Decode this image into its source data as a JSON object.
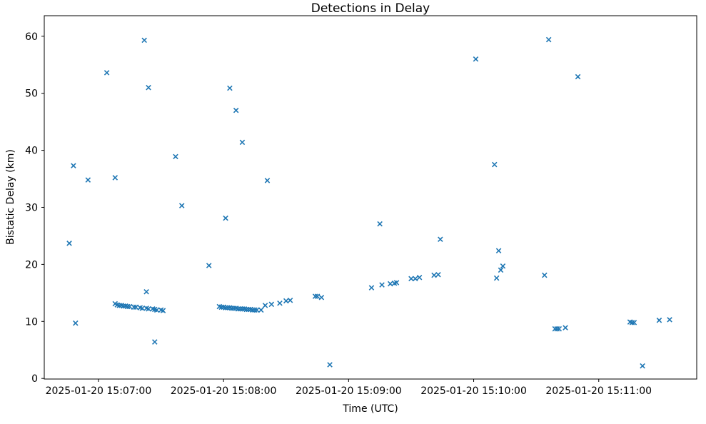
{
  "chart_data": {
    "type": "scatter",
    "title": "Detections in Delay",
    "xlabel": "Time (UTC)",
    "ylabel": "Bistatic Delay (km)",
    "legend": null,
    "grid": false,
    "marker": "x",
    "marker_color": "#1f77b4",
    "background_color": "#ffffff",
    "xlim": [
      "2025-01-20 15:06:34",
      "2025-01-20 15:11:47"
    ],
    "ylim": [
      -0.1,
      63.6
    ],
    "x_ticks": [
      "2025-01-20 15:07:00",
      "2025-01-20 15:08:00",
      "2025-01-20 15:09:00",
      "2025-01-20 15:10:00",
      "2025-01-20 15:11:00"
    ],
    "y_ticks": [
      0,
      10,
      20,
      30,
      40,
      50,
      60
    ],
    "points": [
      {
        "time": "2025-01-20 15:06:46",
        "delay_km": 23.7
      },
      {
        "time": "2025-01-20 15:06:48",
        "delay_km": 37.3
      },
      {
        "time": "2025-01-20 15:06:49",
        "delay_km": 9.7
      },
      {
        "time": "2025-01-20 15:06:55",
        "delay_km": 34.8
      },
      {
        "time": "2025-01-20 15:07:04",
        "delay_km": 53.6
      },
      {
        "time": "2025-01-20 15:07:08",
        "delay_km": 35.2
      },
      {
        "time": "2025-01-20 15:07:08",
        "delay_km": 13.1
      },
      {
        "time": "2025-01-20 15:07:09",
        "delay_km": 12.9
      },
      {
        "time": "2025-01-20 15:07:10",
        "delay_km": 12.8
      },
      {
        "time": "2025-01-20 15:07:11",
        "delay_km": 12.8
      },
      {
        "time": "2025-01-20 15:07:12",
        "delay_km": 12.7
      },
      {
        "time": "2025-01-20 15:07:13",
        "delay_km": 12.7
      },
      {
        "time": "2025-01-20 15:07:14",
        "delay_km": 12.6
      },
      {
        "time": "2025-01-20 15:07:15",
        "delay_km": 12.6
      },
      {
        "time": "2025-01-20 15:07:17",
        "delay_km": 12.5
      },
      {
        "time": "2025-01-20 15:07:18",
        "delay_km": 12.5
      },
      {
        "time": "2025-01-20 15:07:20",
        "delay_km": 12.4
      },
      {
        "time": "2025-01-20 15:07:21",
        "delay_km": 12.3
      },
      {
        "time": "2025-01-20 15:07:22",
        "delay_km": 59.3
      },
      {
        "time": "2025-01-20 15:07:23",
        "delay_km": 15.2
      },
      {
        "time": "2025-01-20 15:07:23",
        "delay_km": 12.3
      },
      {
        "time": "2025-01-20 15:07:24",
        "delay_km": 51.0
      },
      {
        "time": "2025-01-20 15:07:24",
        "delay_km": 12.2
      },
      {
        "time": "2025-01-20 15:07:26",
        "delay_km": 12.2
      },
      {
        "time": "2025-01-20 15:07:27",
        "delay_km": 12.1
      },
      {
        "time": "2025-01-20 15:07:27",
        "delay_km": 6.4
      },
      {
        "time": "2025-01-20 15:07:28",
        "delay_km": 12.0
      },
      {
        "time": "2025-01-20 15:07:30",
        "delay_km": 12.0
      },
      {
        "time": "2025-01-20 15:07:31",
        "delay_km": 11.9
      },
      {
        "time": "2025-01-20 15:07:37",
        "delay_km": 38.9
      },
      {
        "time": "2025-01-20 15:07:40",
        "delay_km": 30.3
      },
      {
        "time": "2025-01-20 15:07:53",
        "delay_km": 19.8
      },
      {
        "time": "2025-01-20 15:07:58",
        "delay_km": 12.6
      },
      {
        "time": "2025-01-20 15:07:59",
        "delay_km": 12.5
      },
      {
        "time": "2025-01-20 15:08:00",
        "delay_km": 12.5
      },
      {
        "time": "2025-01-20 15:08:01",
        "delay_km": 28.1
      },
      {
        "time": "2025-01-20 15:08:01",
        "delay_km": 12.4
      },
      {
        "time": "2025-01-20 15:08:02",
        "delay_km": 12.4
      },
      {
        "time": "2025-01-20 15:08:03",
        "delay_km": 50.9
      },
      {
        "time": "2025-01-20 15:08:03",
        "delay_km": 12.4
      },
      {
        "time": "2025-01-20 15:08:04",
        "delay_km": 12.3
      },
      {
        "time": "2025-01-20 15:08:05",
        "delay_km": 12.3
      },
      {
        "time": "2025-01-20 15:08:06",
        "delay_km": 47.0
      },
      {
        "time": "2025-01-20 15:08:06",
        "delay_km": 12.3
      },
      {
        "time": "2025-01-20 15:08:07",
        "delay_km": 12.2
      },
      {
        "time": "2025-01-20 15:08:08",
        "delay_km": 12.2
      },
      {
        "time": "2025-01-20 15:08:09",
        "delay_km": 41.4
      },
      {
        "time": "2025-01-20 15:08:09",
        "delay_km": 12.2
      },
      {
        "time": "2025-01-20 15:08:10",
        "delay_km": 12.2
      },
      {
        "time": "2025-01-20 15:08:11",
        "delay_km": 12.1
      },
      {
        "time": "2025-01-20 15:08:12",
        "delay_km": 12.1
      },
      {
        "time": "2025-01-20 15:08:13",
        "delay_km": 12.1
      },
      {
        "time": "2025-01-20 15:08:14",
        "delay_km": 12.0
      },
      {
        "time": "2025-01-20 15:08:15",
        "delay_km": 12.0
      },
      {
        "time": "2025-01-20 15:08:16",
        "delay_km": 12.0
      },
      {
        "time": "2025-01-20 15:08:18",
        "delay_km": 12.0
      },
      {
        "time": "2025-01-20 15:08:20",
        "delay_km": 12.8
      },
      {
        "time": "2025-01-20 15:08:21",
        "delay_km": 34.7
      },
      {
        "time": "2025-01-20 15:08:23",
        "delay_km": 13.0
      },
      {
        "time": "2025-01-20 15:08:27",
        "delay_km": 13.2
      },
      {
        "time": "2025-01-20 15:08:30",
        "delay_km": 13.6
      },
      {
        "time": "2025-01-20 15:08:32",
        "delay_km": 13.7
      },
      {
        "time": "2025-01-20 15:08:44",
        "delay_km": 14.4
      },
      {
        "time": "2025-01-20 15:08:45",
        "delay_km": 14.4
      },
      {
        "time": "2025-01-20 15:08:47",
        "delay_km": 14.2
      },
      {
        "time": "2025-01-20 15:08:51",
        "delay_km": 2.4
      },
      {
        "time": "2025-01-20 15:09:11",
        "delay_km": 15.9
      },
      {
        "time": "2025-01-20 15:09:15",
        "delay_km": 27.1
      },
      {
        "time": "2025-01-20 15:09:16",
        "delay_km": 16.4
      },
      {
        "time": "2025-01-20 15:09:20",
        "delay_km": 16.6
      },
      {
        "time": "2025-01-20 15:09:22",
        "delay_km": 16.7
      },
      {
        "time": "2025-01-20 15:09:23",
        "delay_km": 16.8
      },
      {
        "time": "2025-01-20 15:09:30",
        "delay_km": 17.5
      },
      {
        "time": "2025-01-20 15:09:32",
        "delay_km": 17.5
      },
      {
        "time": "2025-01-20 15:09:34",
        "delay_km": 17.7
      },
      {
        "time": "2025-01-20 15:09:41",
        "delay_km": 18.1
      },
      {
        "time": "2025-01-20 15:09:43",
        "delay_km": 18.2
      },
      {
        "time": "2025-01-20 15:09:44",
        "delay_km": 24.4
      },
      {
        "time": "2025-01-20 15:10:01",
        "delay_km": 56.0
      },
      {
        "time": "2025-01-20 15:10:10",
        "delay_km": 37.5
      },
      {
        "time": "2025-01-20 15:10:11",
        "delay_km": 17.6
      },
      {
        "time": "2025-01-20 15:10:12",
        "delay_km": 22.4
      },
      {
        "time": "2025-01-20 15:10:13",
        "delay_km": 19.0
      },
      {
        "time": "2025-01-20 15:10:14",
        "delay_km": 19.7
      },
      {
        "time": "2025-01-20 15:10:34",
        "delay_km": 18.1
      },
      {
        "time": "2025-01-20 15:10:36",
        "delay_km": 59.4
      },
      {
        "time": "2025-01-20 15:10:39",
        "delay_km": 8.7
      },
      {
        "time": "2025-01-20 15:10:40",
        "delay_km": 8.7
      },
      {
        "time": "2025-01-20 15:10:41",
        "delay_km": 8.7
      },
      {
        "time": "2025-01-20 15:10:44",
        "delay_km": 8.9
      },
      {
        "time": "2025-01-20 15:10:50",
        "delay_km": 52.9
      },
      {
        "time": "2025-01-20 15:11:15",
        "delay_km": 9.9
      },
      {
        "time": "2025-01-20 15:11:16",
        "delay_km": 9.8
      },
      {
        "time": "2025-01-20 15:11:17",
        "delay_km": 9.8
      },
      {
        "time": "2025-01-20 15:11:21",
        "delay_km": 2.2
      },
      {
        "time": "2025-01-20 15:11:29",
        "delay_km": 10.2
      },
      {
        "time": "2025-01-20 15:11:34",
        "delay_km": 10.3
      }
    ]
  }
}
